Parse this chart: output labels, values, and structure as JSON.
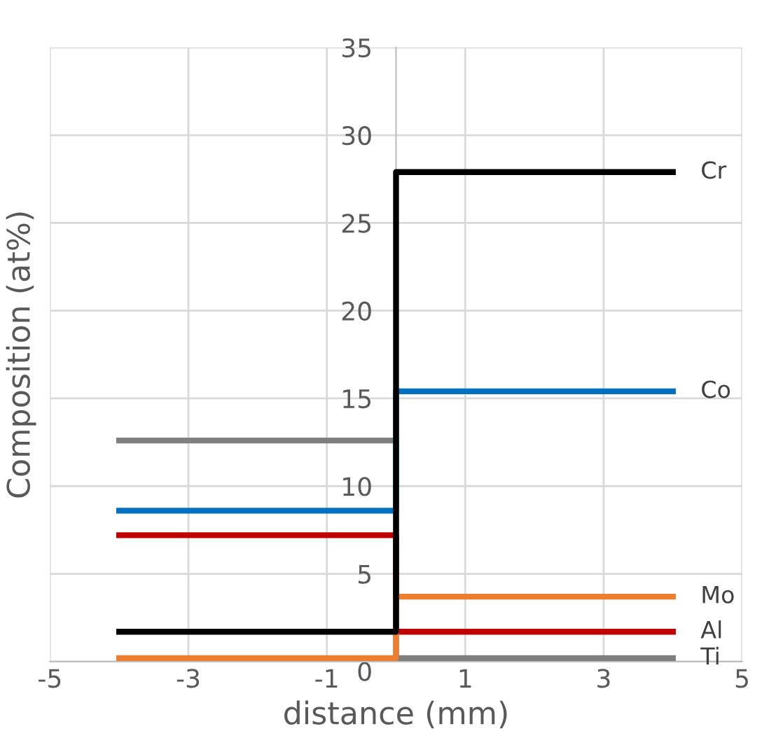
{
  "chart_data": {
    "type": "line",
    "xlabel": "distance (mm)",
    "ylabel": "Composition (at%)",
    "xlim": [
      -5,
      5
    ],
    "xticks": [
      -5,
      -3,
      -1,
      1,
      3,
      5
    ],
    "ylim": [
      0,
      35
    ],
    "yticks": [
      0,
      5,
      10,
      15,
      20,
      25,
      30,
      35
    ],
    "grid": true,
    "x": [
      -4,
      0,
      0,
      4
    ],
    "series": [
      {
        "name": "Cr",
        "color": "#000000",
        "values": [
          1.7,
          1.7,
          27.9,
          27.9
        ]
      },
      {
        "name": "Co",
        "color": "#0070c0",
        "values": [
          8.6,
          8.6,
          15.4,
          15.4
        ]
      },
      {
        "name": "Mo",
        "color": "#ed7d31",
        "values": [
          0.2,
          0.2,
          3.7,
          3.7
        ]
      },
      {
        "name": "Al",
        "color": "#c00000",
        "values": [
          7.2,
          7.2,
          1.7,
          1.7
        ]
      },
      {
        "name": "Ti",
        "color": "#7f7f7f",
        "values": [
          12.6,
          12.6,
          0.2,
          0.2
        ]
      }
    ]
  }
}
